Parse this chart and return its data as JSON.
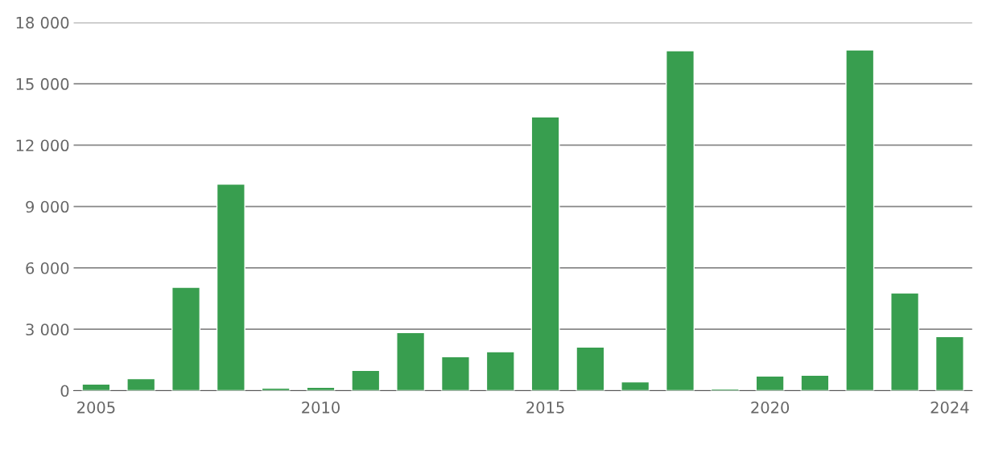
{
  "chart_data": {
    "type": "bar",
    "x": [
      2005,
      2006,
      2007,
      2008,
      2009,
      2010,
      2011,
      2012,
      2013,
      2014,
      2015,
      2016,
      2017,
      2018,
      2019,
      2020,
      2021,
      2022,
      2023,
      2024
    ],
    "values": [
      320,
      590,
      5050,
      10100,
      120,
      160,
      990,
      2840,
      1660,
      1900,
      13380,
      2130,
      430,
      16620,
      80,
      710,
      750,
      16660,
      4780,
      2640
    ],
    "color": "#389e4f",
    "xlim": [
      2004.5,
      2024.5
    ],
    "xticks": [
      2005,
      2010,
      2015,
      2020,
      2024
    ],
    "ylim": [
      0,
      18000
    ],
    "yticks": [
      0,
      {
        "value": 3000,
        "label": "3 000"
      },
      {
        "value": 6000,
        "label": "6 000"
      },
      {
        "value": 9000,
        "label": "9 000"
      },
      {
        "value": 12000,
        "label": "12 000"
      },
      {
        "value": 15000,
        "label": "15 000"
      },
      {
        "value": 18000,
        "label": "18 000"
      }
    ],
    "grid": "y",
    "legend": false
  }
}
